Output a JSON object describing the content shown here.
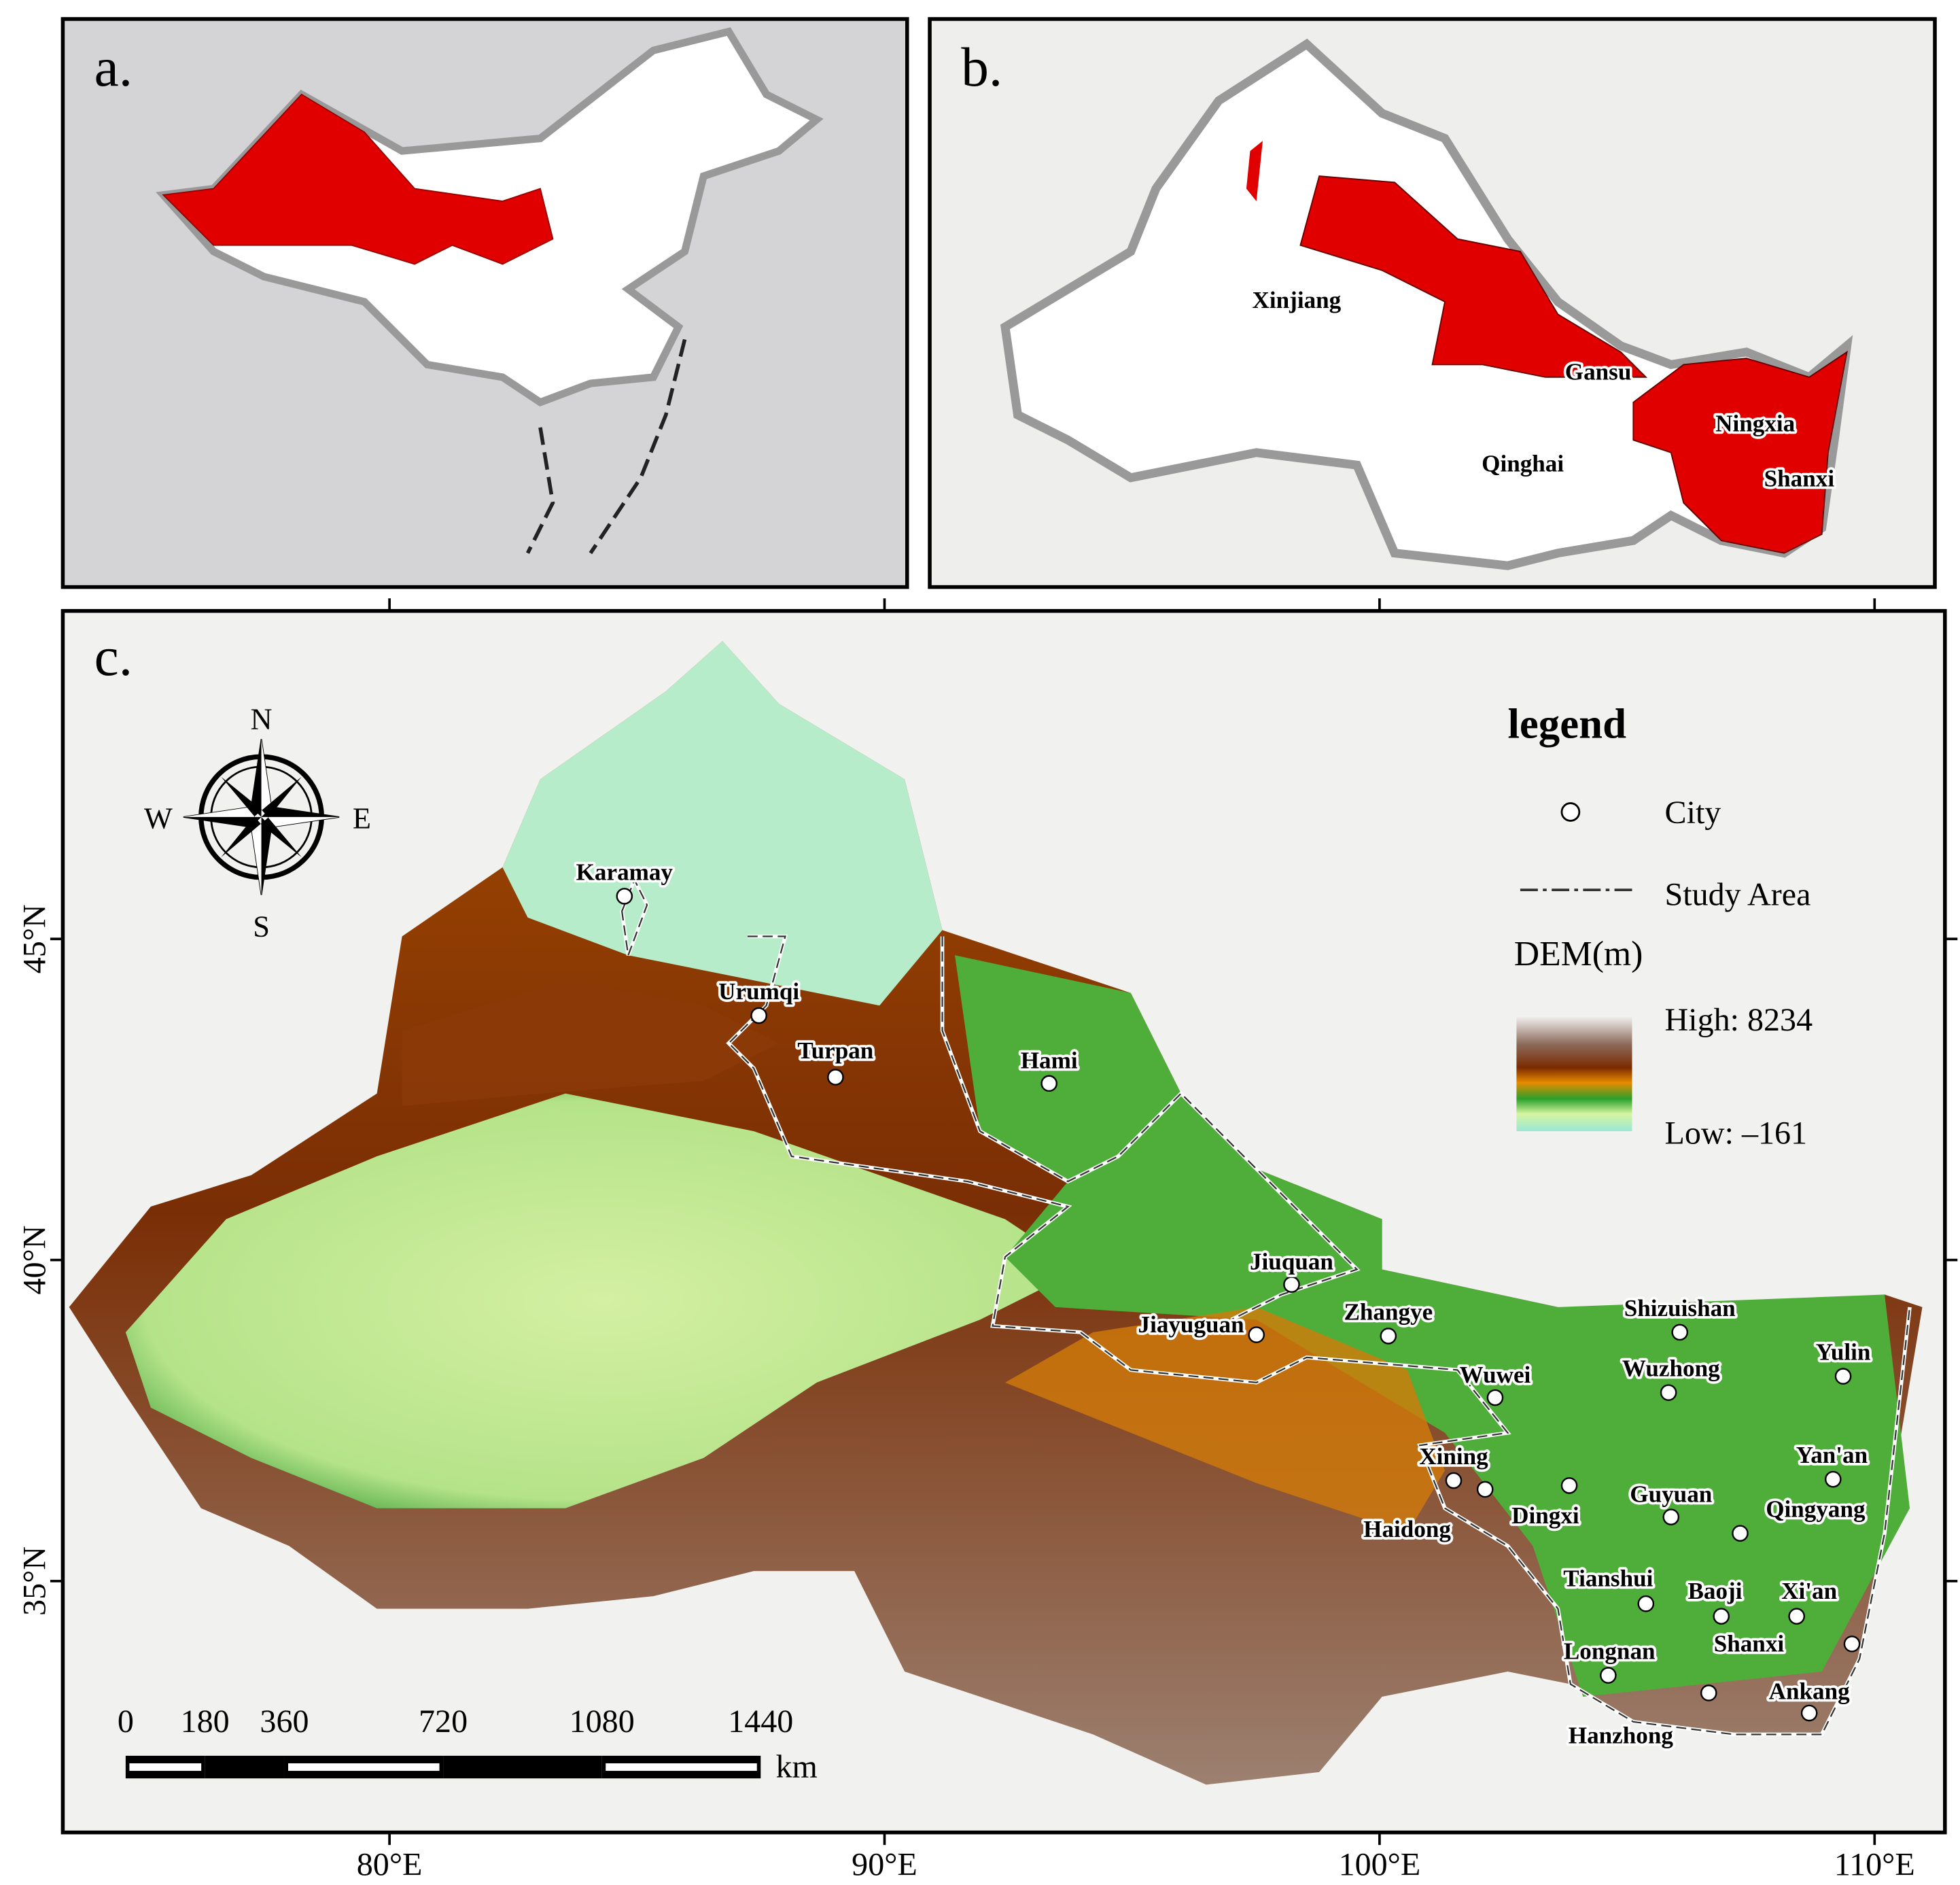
{
  "panels": {
    "a": {
      "label": "a."
    },
    "b": {
      "label": "b.",
      "regions": [
        "Xinjiang",
        "Gansu",
        "Qinghai",
        "Ningxia",
        "Shanxi"
      ]
    },
    "c": {
      "label": "c.",
      "cities": [
        "Karamay",
        "Urumqi",
        "Turpan",
        "Hami",
        "Jiuquan",
        "Jiayuguan",
        "Zhangye",
        "Wuwei",
        "Shizuishan",
        "Wuzhong",
        "Yulin",
        "Yan'an",
        "Xining",
        "Haidong",
        "Dingxi",
        "Guyuan",
        "Qingyang",
        "Tianshui",
        "Baoji",
        "Xi'an",
        "Shanxi",
        "Longnan",
        "Hanzhong",
        "Ankang"
      ],
      "legend": {
        "title": "legend",
        "city": "City",
        "study_area": "Study Area",
        "dem": "DEM(m)",
        "high": "High: 8234",
        "low": "Low: –161"
      },
      "lat_ticks": [
        {
          "value": 45,
          "label": "45°N"
        },
        {
          "value": 40,
          "label": "40°N"
        },
        {
          "value": 35,
          "label": "35°N"
        }
      ],
      "lon_ticks": [
        {
          "value": 80,
          "label": "80°E"
        },
        {
          "value": 90,
          "label": "90°E"
        },
        {
          "value": 100,
          "label": "100°E"
        },
        {
          "value": 110,
          "label": "110°E"
        }
      ],
      "scale_bar": {
        "ticks": [
          0,
          180,
          360,
          720,
          1080,
          1440
        ],
        "unit": "km"
      },
      "compass": {
        "n": "N",
        "s": "S",
        "e": "E",
        "w": "W"
      }
    }
  }
}
